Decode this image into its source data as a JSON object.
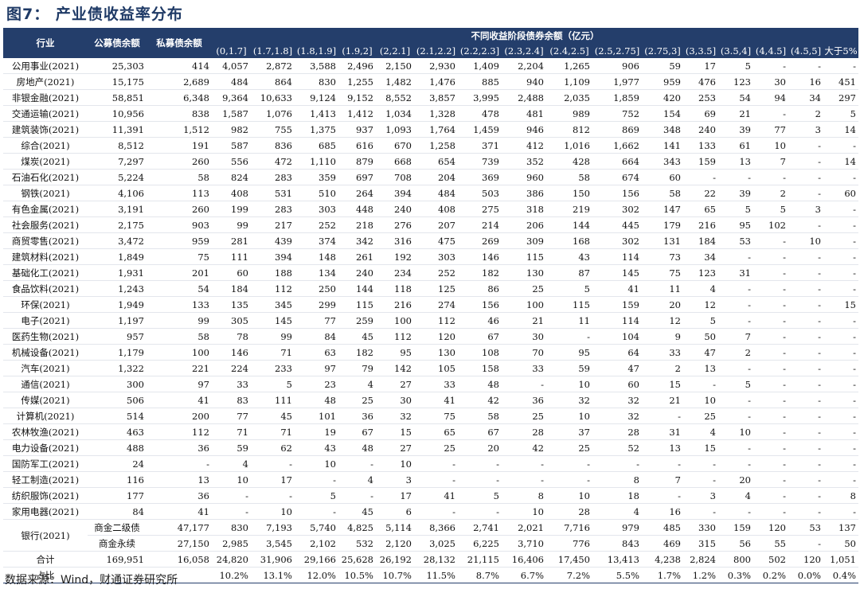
{
  "figure": {
    "title": "图7： 产业债收益率分布"
  },
  "table": {
    "header": {
      "industry": "行业",
      "public": "公募债余额",
      "private": "私募债余额",
      "group": "不同收益阶段债券余额（亿元）",
      "buckets": [
        "(0,1.7]",
        "(1.7,1.8]",
        "(1.8,1.9]",
        "(1.9,2]",
        "(2,2.1]",
        "(2.1,2.2]",
        "(2.2,2.3]",
        "(2.3,2.4]",
        "(2.4,2.5]",
        "(2.5,2.75]",
        "(2.75,3]",
        "(3,3.5]",
        "(3.5,4]",
        "(4,4.5]",
        "(4.5,5]",
        "大于5%"
      ]
    },
    "rows": [
      [
        "公用事业(2021)",
        "25,303",
        "414",
        "4,057",
        "2,872",
        "3,588",
        "2,496",
        "2,150",
        "2,930",
        "1,409",
        "2,204",
        "1,265",
        "906",
        "59",
        "17",
        "5",
        "-",
        "-",
        "-"
      ],
      [
        "房地产(2021)",
        "15,175",
        "2,689",
        "484",
        "864",
        "830",
        "1,255",
        "1,482",
        "1,476",
        "885",
        "940",
        "1,109",
        "1,977",
        "959",
        "476",
        "123",
        "30",
        "16",
        "451"
      ],
      [
        "非银金融(2021)",
        "58,851",
        "6,348",
        "9,364",
        "10,633",
        "9,124",
        "9,152",
        "8,552",
        "3,857",
        "3,995",
        "2,488",
        "2,035",
        "1,859",
        "420",
        "253",
        "54",
        "94",
        "34",
        "297"
      ],
      [
        "交通运输(2021)",
        "10,956",
        "838",
        "1,587",
        "1,076",
        "1,413",
        "1,412",
        "1,034",
        "1,328",
        "478",
        "481",
        "989",
        "752",
        "154",
        "69",
        "21",
        "-",
        "2",
        "5"
      ],
      [
        "建筑装饰(2021)",
        "11,391",
        "1,512",
        "982",
        "755",
        "1,375",
        "937",
        "1,093",
        "1,764",
        "1,459",
        "946",
        "812",
        "869",
        "348",
        "240",
        "39",
        "77",
        "3",
        "14"
      ],
      [
        "综合(2021)",
        "8,512",
        "191",
        "587",
        "836",
        "685",
        "616",
        "670",
        "1,258",
        "371",
        "412",
        "1,016",
        "1,662",
        "141",
        "133",
        "61",
        "10",
        "-",
        "-"
      ],
      [
        "煤炭(2021)",
        "7,297",
        "260",
        "556",
        "472",
        "1,110",
        "879",
        "668",
        "654",
        "739",
        "352",
        "428",
        "664",
        "343",
        "159",
        "13",
        "7",
        "-",
        "14"
      ],
      [
        "石油石化(2021)",
        "5,224",
        "58",
        "824",
        "283",
        "359",
        "697",
        "708",
        "204",
        "369",
        "960",
        "58",
        "674",
        "60",
        "-",
        "-",
        "-",
        "-",
        "-"
      ],
      [
        "钢铁(2021)",
        "4,106",
        "113",
        "408",
        "531",
        "510",
        "264",
        "394",
        "484",
        "503",
        "386",
        "150",
        "156",
        "58",
        "22",
        "39",
        "2",
        "-",
        "60"
      ],
      [
        "有色金属(2021)",
        "3,191",
        "260",
        "199",
        "283",
        "303",
        "448",
        "240",
        "408",
        "275",
        "318",
        "219",
        "302",
        "147",
        "65",
        "5",
        "5",
        "3",
        "-"
      ],
      [
        "社会服务(2021)",
        "2,175",
        "903",
        "99",
        "217",
        "252",
        "218",
        "276",
        "207",
        "214",
        "206",
        "144",
        "445",
        "179",
        "216",
        "95",
        "102",
        "-",
        "-"
      ],
      [
        "商贸零售(2021)",
        "3,472",
        "959",
        "281",
        "439",
        "374",
        "342",
        "316",
        "475",
        "269",
        "309",
        "168",
        "302",
        "131",
        "184",
        "53",
        "-",
        "10",
        "-"
      ],
      [
        "建筑材料(2021)",
        "1,849",
        "75",
        "111",
        "394",
        "148",
        "261",
        "192",
        "303",
        "146",
        "115",
        "43",
        "114",
        "73",
        "34",
        "-",
        "-",
        "-",
        "-"
      ],
      [
        "基础化工(2021)",
        "1,931",
        "201",
        "60",
        "188",
        "134",
        "240",
        "234",
        "252",
        "182",
        "130",
        "87",
        "145",
        "75",
        "123",
        "31",
        "-",
        "-",
        "-"
      ],
      [
        "食品饮料(2021)",
        "1,243",
        "54",
        "184",
        "112",
        "250",
        "144",
        "118",
        "125",
        "86",
        "25",
        "5",
        "41",
        "11",
        "4",
        "-",
        "-",
        "-",
        "-"
      ],
      [
        "环保(2021)",
        "1,949",
        "133",
        "135",
        "345",
        "299",
        "115",
        "216",
        "274",
        "156",
        "100",
        "115",
        "159",
        "20",
        "12",
        "-",
        "-",
        "-",
        "15"
      ],
      [
        "电子(2021)",
        "1,197",
        "99",
        "305",
        "145",
        "77",
        "259",
        "100",
        "112",
        "46",
        "21",
        "11",
        "114",
        "12",
        "5",
        "-",
        "-",
        "-",
        "-"
      ],
      [
        "医药生物(2021)",
        "957",
        "58",
        "78",
        "99",
        "84",
        "45",
        "112",
        "120",
        "67",
        "30",
        "-",
        "104",
        "9",
        "50",
        "7",
        "-",
        "-",
        "-"
      ],
      [
        "机械设备(2021)",
        "1,179",
        "100",
        "146",
        "71",
        "63",
        "182",
        "95",
        "130",
        "108",
        "70",
        "95",
        "64",
        "33",
        "47",
        "2",
        "-",
        "-",
        "-"
      ],
      [
        "汽车(2021)",
        "1,322",
        "221",
        "224",
        "233",
        "97",
        "79",
        "142",
        "105",
        "158",
        "33",
        "59",
        "47",
        "2",
        "13",
        "-",
        "-",
        "-",
        "-"
      ],
      [
        "通信(2021)",
        "300",
        "97",
        "33",
        "5",
        "23",
        "4",
        "27",
        "33",
        "48",
        "-",
        "10",
        "60",
        "15",
        "-",
        "5",
        "-",
        "-",
        "-"
      ],
      [
        "传媒(2021)",
        "506",
        "41",
        "83",
        "111",
        "48",
        "25",
        "30",
        "41",
        "42",
        "36",
        "32",
        "32",
        "21",
        "10",
        "-",
        "-",
        "-",
        "-"
      ],
      [
        "计算机(2021)",
        "514",
        "200",
        "77",
        "45",
        "101",
        "36",
        "32",
        "75",
        "58",
        "25",
        "10",
        "32",
        "-",
        "25",
        "-",
        "-",
        "-",
        "-"
      ],
      [
        "农林牧渔(2021)",
        "463",
        "112",
        "71",
        "71",
        "19",
        "67",
        "15",
        "65",
        "67",
        "28",
        "37",
        "28",
        "31",
        "4",
        "10",
        "-",
        "-",
        "-"
      ],
      [
        "电力设备(2021)",
        "488",
        "36",
        "59",
        "62",
        "43",
        "48",
        "27",
        "25",
        "20",
        "42",
        "25",
        "52",
        "13",
        "15",
        "-",
        "-",
        "-",
        "-"
      ],
      [
        "国防军工(2021)",
        "24",
        "-",
        "4",
        "-",
        "10",
        "-",
        "10",
        "-",
        "-",
        "-",
        "-",
        "-",
        "-",
        "-",
        "-",
        "-",
        "-",
        "-"
      ],
      [
        "轻工制造(2021)",
        "116",
        "13",
        "10",
        "17",
        "-",
        "4",
        "3",
        "-",
        "-",
        "-",
        "-",
        "8",
        "7",
        "-",
        "20",
        "-",
        "-",
        "-"
      ],
      [
        "纺织服饰(2021)",
        "177",
        "36",
        "-",
        "-",
        "5",
        "-",
        "17",
        "41",
        "5",
        "8",
        "10",
        "18",
        "-",
        "3",
        "4",
        "-",
        "-",
        "8"
      ],
      [
        "家用电器(2021)",
        "84",
        "41",
        "-",
        "10",
        "-",
        "45",
        "6",
        "-",
        "-",
        "10",
        "28",
        "4",
        "16",
        "-",
        "-",
        "-",
        "-",
        "-"
      ]
    ],
    "bank": {
      "industry": "银行(2021)",
      "rows": [
        [
          "商金二级债",
          "47,177",
          "830",
          "7,193",
          "5,740",
          "4,825",
          "5,114",
          "8,366",
          "2,741",
          "2,021",
          "7,716",
          "979",
          "485",
          "330",
          "159",
          "120",
          "53",
          "137"
        ],
        [
          "商金永续",
          "27,150",
          "2,985",
          "3,545",
          "2,102",
          "532",
          "2,120",
          "3,025",
          "6,225",
          "3,710",
          "776",
          "843",
          "469",
          "315",
          "56",
          "55",
          "-",
          "50"
        ]
      ]
    },
    "total": [
      "合计",
      "169,951",
      "16,058",
      "24,820",
      "31,906",
      "29,166",
      "25,628",
      "26,192",
      "28,132",
      "21,115",
      "16,406",
      "17,450",
      "13,413",
      "4,238",
      "2,824",
      "800",
      "502",
      "120",
      "1,051"
    ],
    "share": [
      "占比",
      "",
      "",
      "10.2%",
      "13.1%",
      "12.0%",
      "10.5%",
      "10.7%",
      "11.5%",
      "8.7%",
      "6.7%",
      "7.2%",
      "5.5%",
      "1.7%",
      "1.2%",
      "0.3%",
      "0.2%",
      "0.0%",
      "0.4%"
    ]
  },
  "source": "数据来源：Wind，财通证券研究所"
}
